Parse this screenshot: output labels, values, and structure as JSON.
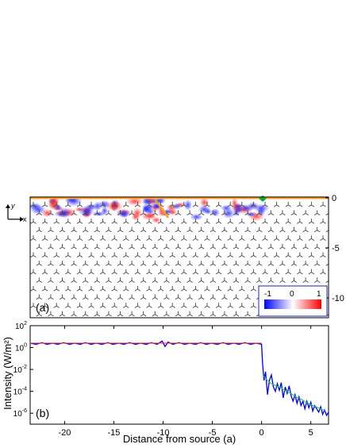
{
  "panel_a": {
    "label": "(a)",
    "axis_icon": {
      "x": "x",
      "y": "y"
    },
    "right_ticks": [
      "0",
      "-5",
      "-10"
    ],
    "colorbar": {
      "ticks": [
        "-1",
        "0",
        "1"
      ]
    }
  },
  "panel_b": {
    "label": "(b)",
    "ylabel": "Intensity (W/m²)",
    "xlabel": "Distance from source (a)"
  },
  "chart_data": {
    "type": "line",
    "xlabel": "Distance from source (a)",
    "ylabel": "Intensity (W/m²)",
    "xlim": [
      -23.5,
      6.8
    ],
    "ylim_log10": [
      -7,
      2
    ],
    "yscale": "log",
    "x_ticks": [
      -20,
      -15,
      -10,
      -5,
      0,
      5
    ],
    "y_ticks_log10": [
      2,
      0,
      -2,
      -4,
      -6
    ],
    "series": [
      {
        "color": "#0000cc",
        "x": [
          -23.5,
          -22.9,
          -22.3,
          -21.8,
          -21.2,
          -20.7,
          -20.1,
          -19.5,
          -19.0,
          -18.4,
          -17.9,
          -17.3,
          -16.8,
          -16.2,
          -15.6,
          -15.1,
          -14.5,
          -14.0,
          -13.4,
          -12.8,
          -12.3,
          -11.7,
          -11.2,
          -10.6,
          -10.1,
          -9.8,
          -9.5,
          -9.0,
          -8.4,
          -7.8,
          -7.3,
          -6.7,
          -6.2,
          -5.6,
          -5.1,
          -4.5,
          -3.9,
          -3.4,
          -2.8,
          -2.3,
          -1.7,
          -1.1,
          -0.6,
          0.0,
          0.1,
          0.25,
          0.4,
          0.6,
          0.8,
          1.0,
          1.2,
          1.4,
          1.6,
          1.8,
          2.0,
          2.2,
          2.4,
          2.6,
          2.8,
          3.0,
          3.2,
          3.4,
          3.6,
          3.8,
          4.0,
          4.2,
          4.4,
          4.6,
          4.8,
          5.0,
          5.2,
          5.4,
          5.6,
          5.8,
          6.0,
          6.2,
          6.4,
          6.6,
          6.8
        ],
        "log10_y": [
          0.4,
          0.3,
          0.45,
          0.3,
          0.4,
          0.3,
          0.45,
          0.3,
          0.4,
          0.3,
          0.45,
          0.3,
          0.4,
          0.3,
          0.45,
          0.3,
          0.4,
          0.3,
          0.45,
          0.3,
          0.4,
          0.3,
          0.45,
          0.3,
          0.6,
          0.1,
          0.5,
          0.3,
          0.45,
          0.3,
          0.4,
          0.3,
          0.45,
          0.3,
          0.4,
          0.3,
          0.45,
          0.3,
          0.4,
          0.3,
          0.45,
          0.3,
          0.4,
          0.3,
          -1.5,
          -3.0,
          -2.2,
          -4.3,
          -3.0,
          -2.5,
          -3.6,
          -4.0,
          -3.3,
          -3.9,
          -3.2,
          -4.6,
          -3.6,
          -4.2,
          -3.5,
          -4.4,
          -4.9,
          -4.3,
          -5.1,
          -4.5,
          -5.3,
          -4.9,
          -5.6,
          -4.9,
          -5.5,
          -5.0,
          -5.8,
          -5.3,
          -5.6,
          -5.9,
          -5.4,
          -6.1,
          -5.7,
          -6.2,
          -5.9
        ]
      },
      {
        "color": "#ff2020",
        "x": [
          -23.5,
          -0.2,
          0.0
        ],
        "log10_y": [
          0.4,
          0.4,
          0.4
        ]
      },
      {
        "color": "#22cc55",
        "x": [
          0.2,
          0.6,
          1.0,
          1.5,
          2.0,
          2.5,
          3.0,
          3.5,
          4.0,
          4.5,
          5.0,
          5.5,
          6.0,
          6.5
        ],
        "log10_y": [
          -2.6,
          -3.0,
          -3.3,
          -3.5,
          -3.7,
          -4.0,
          -4.2,
          -4.5,
          -4.7,
          -5.0,
          -5.2,
          -5.4,
          -5.6,
          -5.8
        ]
      }
    ]
  }
}
